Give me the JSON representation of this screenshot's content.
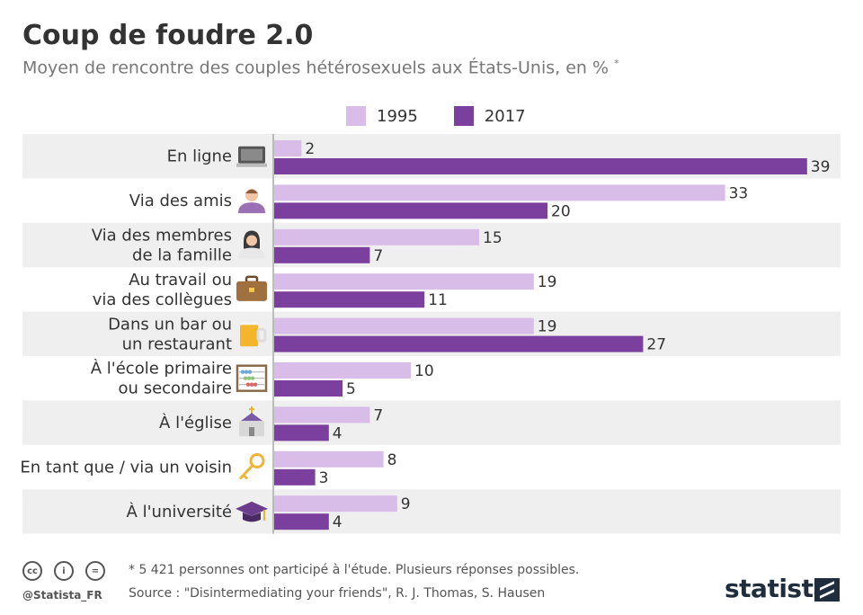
{
  "header": {
    "title": "Coup de foudre 2.0",
    "subtitle": "Moyen de rencontre des couples hétérosexuels aux États-Unis, en %",
    "subtitle_mark": "*"
  },
  "legend": {
    "labels": [
      "1995",
      "2017"
    ]
  },
  "colors": {
    "s1995": "#d7bde8",
    "s2017": "#7b3f9e",
    "band": "#efefef",
    "text": "#333333"
  },
  "chart_data": {
    "type": "bar",
    "orientation": "horizontal",
    "categories": [
      {
        "lines": [
          "En ligne"
        ],
        "icon": "laptop-icon"
      },
      {
        "lines": [
          "Via des amis"
        ],
        "icon": "man-icon"
      },
      {
        "lines": [
          "Via des membres",
          "de la famille"
        ],
        "icon": "woman-icon"
      },
      {
        "lines": [
          "Au travail ou",
          "via des collègues"
        ],
        "icon": "briefcase-icon"
      },
      {
        "lines": [
          "Dans un bar ou",
          "un restaurant"
        ],
        "icon": "beer-mug-icon"
      },
      {
        "lines": [
          "À l'école primaire",
          "ou secondaire"
        ],
        "icon": "abacus-icon"
      },
      {
        "lines": [
          "À l'église"
        ],
        "icon": "church-icon"
      },
      {
        "lines": [
          "En tant que / via un voisin"
        ],
        "icon": "key-icon"
      },
      {
        "lines": [
          "À l'université"
        ],
        "icon": "graduation-cap-icon"
      }
    ],
    "series": [
      {
        "name": "1995",
        "values": [
          2,
          33,
          15,
          19,
          19,
          10,
          7,
          8,
          9
        ]
      },
      {
        "name": "2017",
        "values": [
          39,
          20,
          7,
          11,
          27,
          5,
          4,
          3,
          4
        ]
      }
    ],
    "xlim": [
      0,
      40
    ],
    "grid": false,
    "legend_position": "top"
  },
  "footer": {
    "note": "* 5 421 personnes ont participé à l'étude. Plusieurs réponses possibles.",
    "source": "Source : \"Disintermediating your friends\", R. J. Thomas, S. Hausen",
    "handle": "@Statista_FR",
    "brand": "statista",
    "license_icons": [
      "cc",
      "i",
      "="
    ]
  }
}
